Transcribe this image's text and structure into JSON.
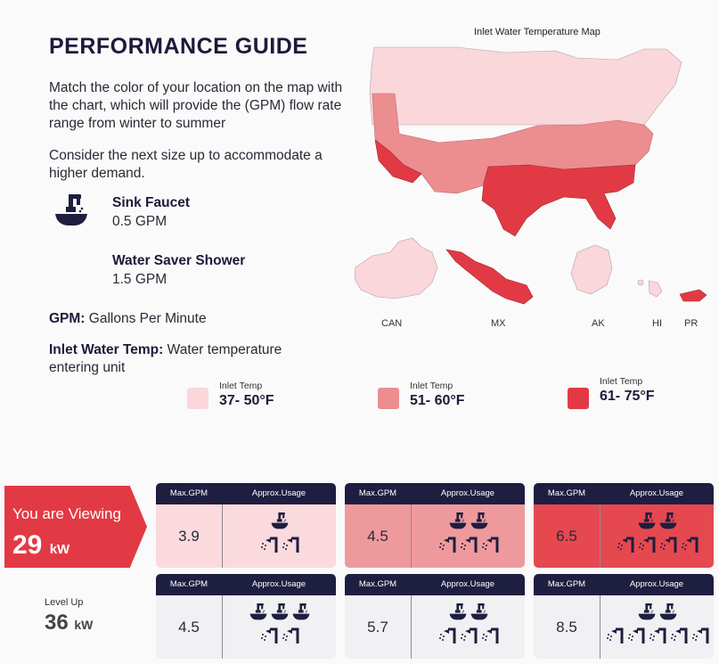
{
  "header": {
    "title": "PERFORMANCE GUIDE",
    "description": "Match the color of your location on the map with the chart, which will provide the (GPM) flow rate range from winter to summer",
    "tip": "Consider the next size up to accommodate a higher demand."
  },
  "fixtures": [
    {
      "name": "Sink Faucet",
      "value": "0.5 GPM",
      "icon": "sink-faucet-icon"
    },
    {
      "name": "Water Saver Shower",
      "value": "1.5 GPM",
      "icon": "shower-icon"
    }
  ],
  "definitions": [
    {
      "term": "GPM:",
      "text": "Gallons Per Minute"
    },
    {
      "term": "Inlet Water Temp:",
      "text": "Water temperature entering unit"
    }
  ],
  "map": {
    "title": "Inlet Water Temperature Map",
    "regions": [
      "CAN",
      "MX",
      "AK",
      "HI",
      "PR"
    ]
  },
  "legend": [
    {
      "label": "Inlet Temp",
      "range": "37- 50°F",
      "color": "#f9d7da"
    },
    {
      "label": "Inlet Temp",
      "range": "51- 60°F",
      "color": "#ec8d90"
    },
    {
      "label": "Inlet Temp",
      "range": "61- 75°F",
      "color": "#e23a45"
    }
  ],
  "viewing": {
    "label": "You are Viewing",
    "value": "29",
    "unit": "kW"
  },
  "level_up": {
    "label": "Level Up",
    "value": "36",
    "unit": "kW"
  },
  "table_headers": {
    "max_gpm": "Max.GPM",
    "usage": "Approx.Usage"
  },
  "cards": [
    {
      "gpm": "3.9",
      "sinks": 1,
      "showers": 2,
      "bg": "#fadadd"
    },
    {
      "gpm": "4.5",
      "sinks": 2,
      "showers": 3,
      "bg": "#ee9a9d"
    },
    {
      "gpm": "6.5",
      "sinks": 2,
      "showers": 4,
      "bg": "#e5484f"
    },
    {
      "gpm": "4.5",
      "sinks": 3,
      "showers": 2,
      "bg": "#f1f1f3"
    },
    {
      "gpm": "5.7",
      "sinks": 2,
      "showers": 3,
      "bg": "#f1f1f3"
    },
    {
      "gpm": "8.5",
      "sinks": 2,
      "showers": 5,
      "bg": "#f1f1f3"
    }
  ],
  "colors": {
    "navy": "#1e1e40",
    "accent": "#e23a45"
  }
}
